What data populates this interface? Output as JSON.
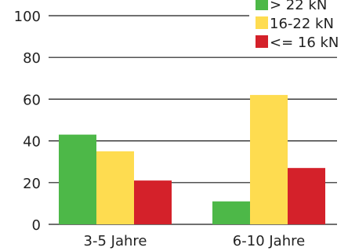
{
  "chart_data": {
    "type": "bar",
    "categories": [
      "3-5 Jahre",
      "6-10 Jahre"
    ],
    "series": [
      {
        "name": "> 22 kN",
        "color": "#4db848",
        "values": [
          43,
          11
        ]
      },
      {
        "name": "16-22 kN",
        "color": "#fedc50",
        "values": [
          35,
          62
        ]
      },
      {
        "name": "<= 16 kN",
        "color": "#d4212a",
        "values": [
          21,
          27
        ]
      }
    ],
    "title": "",
    "xlabel": "",
    "ylabel": "",
    "ylim": [
      0,
      100
    ],
    "yticks": [
      "0",
      "20",
      "40",
      "60",
      "80",
      "100"
    ],
    "grid": true,
    "legend_position": "top-right"
  }
}
